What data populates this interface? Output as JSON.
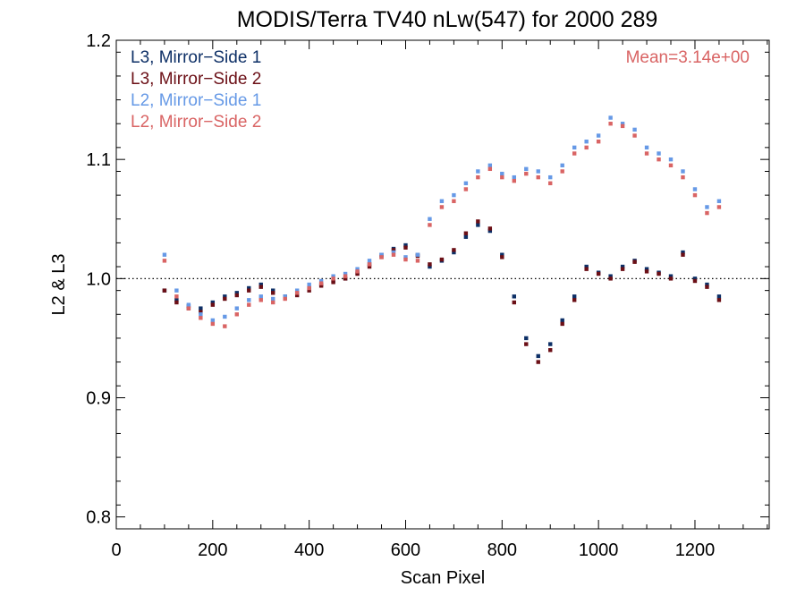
{
  "chart_data": {
    "type": "scatter",
    "title": "MODIS/Terra TV40 nLw(547) for 2000 289",
    "xlabel": "Scan Pixel",
    "ylabel": "L2 & L3",
    "xlim": [
      0,
      1354
    ],
    "ylim": [
      0.79,
      1.2
    ],
    "x_ticks": [
      0,
      200,
      400,
      600,
      800,
      1000,
      1200
    ],
    "x_tick_labels": [
      "0",
      "200",
      "400",
      "600",
      "800",
      "1000",
      "1200"
    ],
    "y_ticks": [
      0.8,
      0.9,
      1.0,
      1.1,
      1.2
    ],
    "y_tick_labels": [
      "0.8",
      "0.9",
      "1.0",
      "1.1",
      "1.2"
    ],
    "reference_line": {
      "y": 1.0,
      "style": "dotted"
    },
    "annotation": {
      "text": "Mean=3.14e+00",
      "color": "#d96464"
    },
    "legend_position": "top-left",
    "series": [
      {
        "name": "L3, Mirror−Side 1",
        "color": "#0d2f66",
        "x": [
          100,
          125,
          150,
          175,
          200,
          225,
          250,
          275,
          300,
          325,
          350,
          375,
          400,
          425,
          450,
          475,
          500,
          525,
          550,
          575,
          600,
          625,
          650,
          675,
          700,
          725,
          750,
          775,
          800,
          825,
          850,
          875,
          900,
          925,
          950,
          975,
          1000,
          1025,
          1050,
          1075,
          1100,
          1125,
          1150,
          1175,
          1200,
          1225,
          1250
        ],
        "y": [
          0.99,
          0.982,
          0.977,
          0.975,
          0.98,
          0.985,
          0.988,
          0.992,
          0.995,
          0.99,
          0.985,
          0.988,
          0.992,
          0.995,
          0.998,
          1.0,
          1.005,
          1.012,
          1.02,
          1.025,
          1.028,
          1.02,
          1.01,
          1.015,
          1.022,
          1.035,
          1.045,
          1.04,
          1.02,
          0.985,
          0.95,
          0.935,
          0.945,
          0.965,
          0.985,
          1.01,
          1.005,
          1.002,
          1.01,
          1.015,
          1.008,
          1.005,
          1.002,
          1.022,
          1.0,
          0.995,
          0.985
        ]
      },
      {
        "name": "L3, Mirror−Side 2",
        "color": "#6b0f16",
        "x": [
          100,
          125,
          150,
          175,
          200,
          225,
          250,
          275,
          300,
          325,
          350,
          375,
          400,
          425,
          450,
          475,
          500,
          525,
          550,
          575,
          600,
          625,
          650,
          675,
          700,
          725,
          750,
          775,
          800,
          825,
          850,
          875,
          900,
          925,
          950,
          975,
          1000,
          1025,
          1050,
          1075,
          1100,
          1125,
          1150,
          1175,
          1200,
          1225,
          1250
        ],
        "y": [
          0.99,
          0.98,
          0.975,
          0.972,
          0.978,
          0.983,
          0.986,
          0.99,
          0.993,
          0.988,
          0.984,
          0.986,
          0.99,
          0.994,
          0.997,
          1.0,
          1.004,
          1.01,
          1.018,
          1.024,
          1.026,
          1.019,
          1.012,
          1.016,
          1.024,
          1.038,
          1.048,
          1.042,
          1.018,
          0.98,
          0.945,
          0.93,
          0.94,
          0.962,
          0.982,
          1.008,
          1.004,
          1.0,
          1.008,
          1.014,
          1.006,
          1.004,
          1.0,
          1.02,
          0.998,
          0.993,
          0.982
        ]
      },
      {
        "name": "L2, Mirror−Side 1",
        "color": "#6699e6",
        "x": [
          100,
          125,
          150,
          175,
          200,
          225,
          250,
          275,
          300,
          325,
          350,
          375,
          400,
          425,
          450,
          475,
          500,
          525,
          550,
          575,
          600,
          625,
          650,
          675,
          700,
          725,
          750,
          775,
          800,
          825,
          850,
          875,
          900,
          925,
          950,
          975,
          1000,
          1025,
          1050,
          1075,
          1100,
          1125,
          1150,
          1175,
          1200,
          1225,
          1250
        ],
        "y": [
          1.02,
          0.99,
          0.978,
          0.97,
          0.965,
          0.968,
          0.975,
          0.982,
          0.985,
          0.983,
          0.985,
          0.99,
          0.995,
          0.998,
          1.002,
          1.004,
          1.008,
          1.015,
          1.02,
          1.022,
          1.018,
          1.02,
          1.05,
          1.065,
          1.07,
          1.08,
          1.09,
          1.095,
          1.088,
          1.085,
          1.092,
          1.09,
          1.085,
          1.095,
          1.11,
          1.115,
          1.12,
          1.135,
          1.13,
          1.125,
          1.11,
          1.105,
          1.1,
          1.09,
          1.075,
          1.06,
          1.065
        ]
      },
      {
        "name": "L2, Mirror−Side 2",
        "color": "#d96464",
        "x": [
          100,
          125,
          150,
          175,
          200,
          225,
          250,
          275,
          300,
          325,
          350,
          375,
          400,
          425,
          450,
          475,
          500,
          525,
          550,
          575,
          600,
          625,
          650,
          675,
          700,
          725,
          750,
          775,
          800,
          825,
          850,
          875,
          900,
          925,
          950,
          975,
          1000,
          1025,
          1050,
          1075,
          1100,
          1125,
          1150,
          1175,
          1200,
          1225,
          1250
        ],
        "y": [
          1.015,
          0.985,
          0.975,
          0.967,
          0.962,
          0.96,
          0.97,
          0.978,
          0.982,
          0.98,
          0.983,
          0.988,
          0.992,
          0.996,
          1.0,
          1.002,
          1.006,
          1.012,
          1.018,
          1.02,
          1.016,
          1.015,
          1.045,
          1.06,
          1.065,
          1.075,
          1.085,
          1.092,
          1.085,
          1.082,
          1.088,
          1.085,
          1.08,
          1.09,
          1.105,
          1.11,
          1.115,
          1.13,
          1.128,
          1.12,
          1.105,
          1.1,
          1.095,
          1.085,
          1.07,
          1.055,
          1.06
        ]
      }
    ]
  }
}
